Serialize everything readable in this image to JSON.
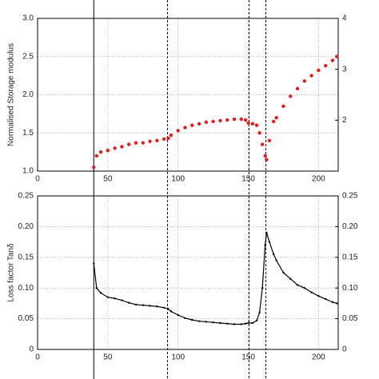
{
  "chart_data": [
    {
      "type": "scatter",
      "ylabel": "Normalised Storage modulus",
      "x": [
        40,
        42,
        45,
        50,
        55,
        60,
        65,
        70,
        75,
        80,
        85,
        90,
        93,
        95,
        100,
        105,
        110,
        115,
        120,
        125,
        130,
        135,
        140,
        145,
        148,
        150,
        153,
        156,
        158,
        160,
        162,
        163,
        165,
        168,
        170,
        175,
        180,
        185,
        190,
        195,
        200,
        205,
        210,
        213
      ],
      "series": [
        {
          "color": "#e02020",
          "values": [
            1.05,
            1.2,
            1.25,
            1.27,
            1.3,
            1.32,
            1.35,
            1.37,
            1.37,
            1.39,
            1.4,
            1.42,
            1.43,
            1.47,
            1.53,
            1.57,
            1.6,
            1.62,
            1.64,
            1.65,
            1.66,
            1.67,
            1.68,
            1.68,
            1.67,
            1.63,
            1.62,
            1.6,
            1.5,
            1.35,
            1.2,
            1.15,
            1.4,
            1.65,
            1.7,
            1.85,
            1.98,
            2.08,
            2.18,
            2.25,
            2.32,
            2.38,
            2.45,
            2.5
          ]
        }
      ],
      "xlim": [
        0,
        214
      ],
      "xticks": [
        0,
        50,
        100,
        150,
        200
      ],
      "ylim": [
        1,
        3
      ],
      "yticks": [
        {
          "value": 1,
          "label": "1.0"
        },
        {
          "value": 1.5,
          "label": "1.5"
        },
        {
          "value": 2,
          "label": "2.0"
        },
        {
          "value": 2.5,
          "label": "2.5"
        },
        {
          "value": 3,
          "label": "3.0"
        }
      ],
      "y2lim": [
        1,
        4
      ],
      "y2ticks": [
        2,
        3,
        4
      ],
      "grid": true,
      "vlines_solid": [
        40
      ],
      "vlines_dashed": [
        92.5,
        150.5,
        162.5
      ]
    },
    {
      "type": "line",
      "ylabel": "Loss factor Tanδ",
      "x": [
        40,
        42,
        45,
        50,
        55,
        60,
        65,
        70,
        75,
        80,
        85,
        90,
        93,
        95,
        100,
        105,
        110,
        115,
        120,
        125,
        130,
        135,
        140,
        145,
        148,
        150,
        153,
        156,
        158,
        160,
        162,
        163,
        165,
        168,
        170,
        175,
        180,
        185,
        190,
        195,
        200,
        205,
        210,
        213
      ],
      "series": [
        {
          "color": "#000000",
          "values": [
            0.14,
            0.1,
            0.092,
            0.085,
            0.083,
            0.08,
            0.076,
            0.073,
            0.072,
            0.071,
            0.07,
            0.068,
            0.066,
            0.062,
            0.056,
            0.051,
            0.048,
            0.046,
            0.045,
            0.044,
            0.043,
            0.042,
            0.041,
            0.041,
            0.042,
            0.043,
            0.043,
            0.047,
            0.06,
            0.1,
            0.17,
            0.19,
            0.175,
            0.155,
            0.145,
            0.125,
            0.115,
            0.105,
            0.1,
            0.093,
            0.087,
            0.082,
            0.077,
            0.075
          ]
        }
      ],
      "xlim": [
        0,
        214
      ],
      "xticks": [
        0,
        50,
        100,
        150,
        200
      ],
      "ylim": [
        0,
        0.25
      ],
      "yticks": [
        0,
        0.05,
        {
          "value": 0.1,
          "label": "0.10"
        },
        0.15,
        {
          "value": 0.2,
          "label": "0.20"
        },
        0.25
      ],
      "y2lim": [
        0,
        0.25
      ],
      "y2ticks": [
        0,
        0.05,
        {
          "value": 0.1,
          "label": "0.10"
        },
        0.15,
        {
          "value": 0.2,
          "label": "0.20"
        },
        0.25
      ],
      "grid": true,
      "vlines_solid": [
        40
      ],
      "vlines_dashed": [
        92.5,
        150.5,
        162.5
      ]
    }
  ]
}
